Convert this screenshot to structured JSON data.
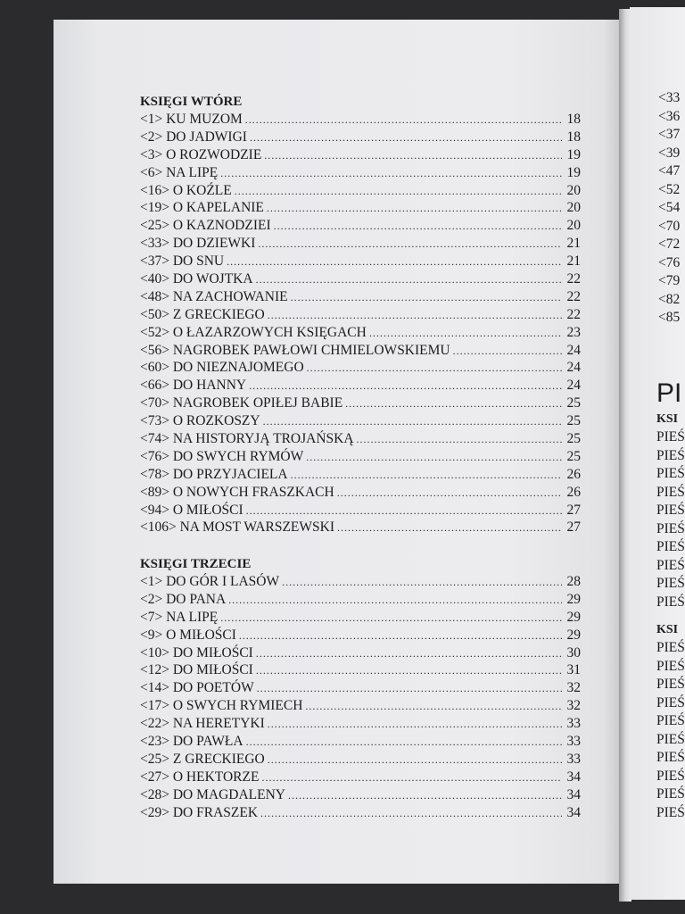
{
  "left_page": {
    "sections": [
      {
        "heading": "KSIĘGI WTÓRE",
        "entries": [
          {
            "title": "<1> KU MUZOM",
            "page": "18"
          },
          {
            "title": "<2> DO JADWIGI",
            "page": "18"
          },
          {
            "title": "<3> O ROZWODZIE",
            "page": "19"
          },
          {
            "title": "<6> NA LIPĘ",
            "page": "19"
          },
          {
            "title": "<16> O KOŹLE",
            "page": "20"
          },
          {
            "title": "<19> O KAPELANIE",
            "page": "20"
          },
          {
            "title": "<25> O KAZNODZIEI",
            "page": "20"
          },
          {
            "title": "<33> DO DZIEWKI",
            "page": "21"
          },
          {
            "title": "<37> DO SNU",
            "page": "21"
          },
          {
            "title": "<40> DO WOJTKA",
            "page": "22"
          },
          {
            "title": "<48> NA ZACHOWANIE",
            "page": "22"
          },
          {
            "title": "<50> Z GRECKIEGO",
            "page": "22"
          },
          {
            "title": "<52> O ŁAZARZOWYCH KSIĘGACH",
            "page": "23"
          },
          {
            "title": "<56> NAGROBEK PAWŁOWI CHMIELOWSKIEMU",
            "page": "24"
          },
          {
            "title": "<60> DO NIEZNAJOMEGO",
            "page": "24"
          },
          {
            "title": "<66> DO HANNY",
            "page": "24"
          },
          {
            "title": "<70> NAGROBEK OPIŁEJ BABIE",
            "page": "25"
          },
          {
            "title": "<73> O ROZKOSZY",
            "page": "25"
          },
          {
            "title": "<74> NA HISTORYJĄ TROJAŃSKĄ",
            "page": "25"
          },
          {
            "title": "<76> DO SWYCH RYMÓW",
            "page": "25"
          },
          {
            "title": "<78> DO PRZYJACIELA",
            "page": "26"
          },
          {
            "title": "<89> O NOWYCH FRASZKACH",
            "page": "26"
          },
          {
            "title": "<94> O  MIŁOŚCI",
            "page": "27"
          },
          {
            "title": "<106> NA MOST WARSZEWSKI",
            "page": "27"
          }
        ]
      },
      {
        "heading": "KSIĘGI TRZECIE",
        "entries": [
          {
            "title": "<1> DO GÓR I LASÓW",
            "page": "28"
          },
          {
            "title": "<2> DO PANA",
            "page": "29"
          },
          {
            "title": "<7> NA LIPĘ",
            "page": "29"
          },
          {
            "title": "<9> O MIŁOŚCI",
            "page": "29"
          },
          {
            "title": "<10> DO MIŁOŚCI",
            "page": "30"
          },
          {
            "title": "<12> DO MIŁOŚCI",
            "page": "31"
          },
          {
            "title": "<14> DO POETÓW",
            "page": "32"
          },
          {
            "title": "<17> O SWYCH RYMIECH",
            "page": "32"
          },
          {
            "title": "<22> NA HERETYKI",
            "page": "33"
          },
          {
            "title": "<23> DO PAWŁA",
            "page": "33"
          },
          {
            "title": "<25> Z GRECKIEGO",
            "page": "33"
          },
          {
            "title": "<27> O HEKTORZE",
            "page": "34"
          },
          {
            "title": "<28> DO MAGDALENY",
            "page": "34"
          },
          {
            "title": "<29> DO FRASZEK",
            "page": "34"
          }
        ]
      }
    ]
  },
  "right_page": {
    "top_entries": [
      "<33",
      "<36",
      "<37",
      "<39",
      "<47",
      "<52",
      "<54",
      "<70",
      "<72",
      "<76",
      "<79",
      "<82",
      "<85"
    ],
    "big_heading": "PI",
    "sections": [
      {
        "heading": "KSI",
        "entries": [
          "PIEŚ",
          "PIEŚ",
          "PIEŚ",
          "PIEŚ",
          "PIEŚ",
          "PIEŚ",
          "PIEŚ",
          "PIEŚ",
          "PIEŚ",
          "PIEŚ"
        ]
      },
      {
        "heading": "KSI",
        "entries": [
          "PIEŚ",
          "PIEŚ",
          "PIEŚ",
          "PIEŚ",
          "PIEŚ",
          "PIEŚ",
          "PIEŚ",
          "PIEŚ",
          "PIEŚ",
          "PIEŚ"
        ]
      }
    ]
  }
}
